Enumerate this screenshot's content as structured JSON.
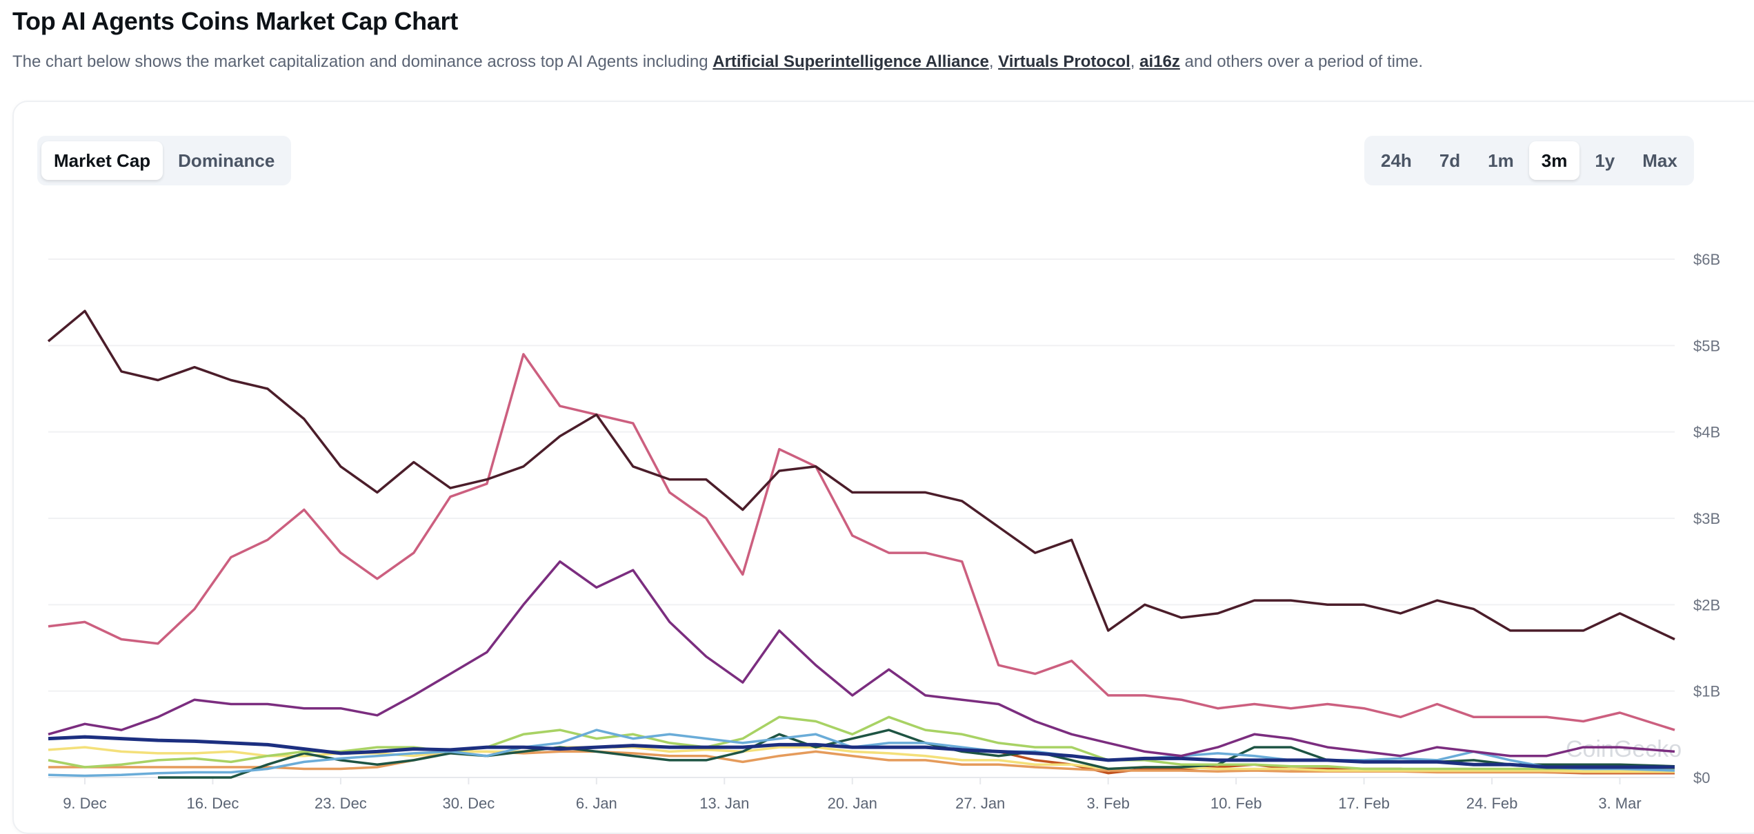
{
  "header": {
    "title": "Top AI Agents Coins Market Cap Chart",
    "subtitle_before": "The chart below shows the market capitalization and dominance across top AI Agents including ",
    "links": [
      "Artificial Superintelligence Alliance",
      "Virtuals Protocol",
      "ai16z"
    ],
    "subtitle_after": " and others over a period of time."
  },
  "view_toggle": {
    "options": [
      "Market Cap",
      "Dominance"
    ],
    "selected": "Market Cap"
  },
  "range_toggle": {
    "options": [
      "24h",
      "7d",
      "1m",
      "3m",
      "1y",
      "Max"
    ],
    "selected": "3m"
  },
  "watermark": "CoinGecko",
  "chart_data": {
    "type": "line",
    "title": "",
    "xlabel": "",
    "ylabel": "",
    "y_unit": "USD billions",
    "ylim": [
      0,
      6
    ],
    "y_ticks": [
      "$0",
      "$1B",
      "$2B",
      "$3B",
      "$4B",
      "$5B",
      "$6B"
    ],
    "x_ticks": [
      {
        "date": "2024-12-09",
        "label": "9. Dec"
      },
      {
        "date": "2024-12-16",
        "label": "16. Dec"
      },
      {
        "date": "2024-12-23",
        "label": "23. Dec"
      },
      {
        "date": "2024-12-30",
        "label": "30. Dec"
      },
      {
        "date": "2025-01-06",
        "label": "6. Jan"
      },
      {
        "date": "2025-01-13",
        "label": "13. Jan"
      },
      {
        "date": "2025-01-20",
        "label": "20. Jan"
      },
      {
        "date": "2025-01-27",
        "label": "27. Jan"
      },
      {
        "date": "2025-02-03",
        "label": "3. Feb"
      },
      {
        "date": "2025-02-10",
        "label": "10. Feb"
      },
      {
        "date": "2025-02-17",
        "label": "17. Feb"
      },
      {
        "date": "2025-02-24",
        "label": "24. Feb"
      },
      {
        "date": "2025-03-03",
        "label": "3. Mar"
      }
    ],
    "xlim": [
      "2024-12-07",
      "2025-03-06"
    ],
    "grid": "horizontal",
    "legend": "none",
    "x": [
      "2024-12-07",
      "2024-12-09",
      "2024-12-11",
      "2024-12-13",
      "2024-12-15",
      "2024-12-17",
      "2024-12-19",
      "2024-12-21",
      "2024-12-23",
      "2024-12-25",
      "2024-12-27",
      "2024-12-29",
      "2024-12-31",
      "2025-01-02",
      "2025-01-04",
      "2025-01-06",
      "2025-01-08",
      "2025-01-10",
      "2025-01-12",
      "2025-01-14",
      "2025-01-16",
      "2025-01-18",
      "2025-01-20",
      "2025-01-22",
      "2025-01-24",
      "2025-01-26",
      "2025-01-28",
      "2025-01-30",
      "2025-02-01",
      "2025-02-03",
      "2025-02-05",
      "2025-02-07",
      "2025-02-09",
      "2025-02-11",
      "2025-02-13",
      "2025-02-15",
      "2025-02-17",
      "2025-02-19",
      "2025-02-21",
      "2025-02-23",
      "2025-02-25",
      "2025-02-27",
      "2025-03-01",
      "2025-03-03",
      "2025-03-06"
    ],
    "series": [
      {
        "color": "#4b1d2a",
        "values": [
          5.05,
          5.4,
          4.7,
          4.6,
          4.75,
          4.6,
          4.5,
          4.15,
          3.6,
          3.3,
          3.65,
          3.35,
          3.45,
          3.6,
          3.95,
          4.2,
          3.6,
          3.45,
          3.45,
          3.1,
          3.55,
          3.6,
          3.3,
          3.3,
          3.3,
          3.2,
          2.9,
          2.6,
          2.75,
          1.7,
          2.0,
          1.85,
          1.9,
          2.05,
          2.05,
          2.0,
          2.0,
          1.9,
          2.05,
          1.95,
          1.7,
          1.7,
          1.7,
          1.9,
          1.6
        ]
      },
      {
        "color": "#cc5f7f",
        "values": [
          1.75,
          1.8,
          1.6,
          1.55,
          1.95,
          2.55,
          2.75,
          3.1,
          2.6,
          2.3,
          2.6,
          3.25,
          3.4,
          4.9,
          4.3,
          4.2,
          4.1,
          3.3,
          3.0,
          2.35,
          3.8,
          3.6,
          2.8,
          2.6,
          2.6,
          2.5,
          1.3,
          1.2,
          1.35,
          0.95,
          0.95,
          0.9,
          0.8,
          0.85,
          0.8,
          0.85,
          0.8,
          0.7,
          0.85,
          0.7,
          0.7,
          0.7,
          0.65,
          0.75,
          0.55
        ]
      },
      {
        "color": "#7b2d7f",
        "values": [
          0.5,
          0.62,
          0.55,
          0.7,
          0.9,
          0.85,
          0.85,
          0.8,
          0.8,
          0.72,
          0.95,
          1.2,
          1.45,
          2.0,
          2.5,
          2.2,
          2.4,
          1.8,
          1.4,
          1.1,
          1.7,
          1.3,
          0.95,
          1.25,
          0.95,
          0.9,
          0.85,
          0.65,
          0.5,
          0.4,
          0.3,
          0.25,
          0.35,
          0.5,
          0.45,
          0.35,
          0.3,
          0.25,
          0.35,
          0.3,
          0.25,
          0.25,
          0.35,
          0.35,
          0.3
        ]
      },
      {
        "color": "#1c2f80",
        "values": [
          0.45,
          0.47,
          0.45,
          0.43,
          0.42,
          0.4,
          0.38,
          0.33,
          0.28,
          0.3,
          0.33,
          0.32,
          0.35,
          0.35,
          0.33,
          0.35,
          0.37,
          0.35,
          0.35,
          0.35,
          0.38,
          0.38,
          0.35,
          0.35,
          0.35,
          0.32,
          0.3,
          0.28,
          0.25,
          0.2,
          0.22,
          0.22,
          0.2,
          0.2,
          0.2,
          0.2,
          0.18,
          0.18,
          0.18,
          0.15,
          0.15,
          0.12,
          0.12,
          0.12,
          0.12
        ]
      },
      {
        "color": "#6aacd8",
        "values": [
          0.03,
          0.02,
          0.03,
          0.05,
          0.06,
          0.06,
          0.1,
          0.18,
          0.22,
          0.25,
          0.28,
          0.3,
          0.25,
          0.35,
          0.4,
          0.55,
          0.45,
          0.5,
          0.45,
          0.4,
          0.45,
          0.5,
          0.35,
          0.4,
          0.4,
          0.35,
          0.3,
          0.3,
          0.25,
          0.2,
          0.22,
          0.25,
          0.28,
          0.25,
          0.2,
          0.2,
          0.2,
          0.22,
          0.2,
          0.3,
          0.2,
          0.12,
          0.1,
          0.1,
          0.08
        ]
      },
      {
        "color": "#a8d264",
        "values": [
          0.2,
          0.12,
          0.15,
          0.2,
          0.22,
          0.18,
          0.25,
          0.3,
          0.3,
          0.35,
          0.35,
          0.3,
          0.35,
          0.5,
          0.55,
          0.45,
          0.5,
          0.4,
          0.35,
          0.45,
          0.7,
          0.65,
          0.5,
          0.7,
          0.55,
          0.5,
          0.4,
          0.35,
          0.35,
          0.2,
          0.2,
          0.15,
          0.15,
          0.15,
          0.13,
          0.13,
          0.1,
          0.1,
          0.1,
          0.1,
          0.1,
          0.1,
          0.1,
          0.1,
          0.1
        ]
      },
      {
        "color": "#1e5443",
        "values": [
          null,
          null,
          null,
          0,
          0,
          0,
          0.15,
          0.28,
          0.2,
          0.15,
          0.2,
          0.28,
          0.25,
          0.3,
          0.35,
          0.3,
          0.25,
          0.2,
          0.2,
          0.3,
          0.5,
          0.35,
          0.45,
          0.55,
          0.4,
          0.3,
          0.25,
          0.3,
          0.2,
          0.1,
          0.12,
          0.12,
          0.15,
          0.35,
          0.35,
          0.2,
          0.18,
          0.18,
          0.18,
          0.2,
          0.15,
          0.15,
          0.15,
          0.15,
          0.13
        ]
      },
      {
        "color": "#f4e07a",
        "values": [
          0.32,
          0.35,
          0.3,
          0.28,
          0.28,
          0.3,
          0.25,
          0.25,
          0.28,
          0.28,
          0.25,
          0.3,
          0.3,
          0.3,
          0.35,
          0.35,
          0.35,
          0.3,
          0.32,
          0.3,
          0.35,
          0.35,
          0.3,
          0.28,
          0.25,
          0.2,
          0.2,
          0.15,
          0.15,
          0.1,
          0.12,
          0.12,
          0.1,
          0.1,
          0.1,
          0.08,
          0.08,
          0.08,
          0.08,
          0.08,
          0.08,
          0.08,
          0.07,
          0.07,
          0.07
        ]
      },
      {
        "color": "#e59b5b",
        "values": [
          0.12,
          0.12,
          0.12,
          0.12,
          0.12,
          0.12,
          0.12,
          0.1,
          0.1,
          0.12,
          0.2,
          0.3,
          0.3,
          0.28,
          0.3,
          0.3,
          0.28,
          0.25,
          0.25,
          0.18,
          0.25,
          0.3,
          0.25,
          0.2,
          0.2,
          0.15,
          0.15,
          0.12,
          0.1,
          0.08,
          0.08,
          0.08,
          0.07,
          0.08,
          0.07,
          0.07,
          0.07,
          0.07,
          0.06,
          0.06,
          0.06,
          0.06,
          0.06,
          0.06,
          0.06
        ]
      },
      {
        "color": "#c0521f",
        "values": [
          null,
          null,
          null,
          null,
          null,
          null,
          null,
          null,
          null,
          null,
          null,
          null,
          null,
          null,
          null,
          null,
          null,
          null,
          null,
          null,
          null,
          null,
          null,
          null,
          null,
          null,
          0.3,
          0.2,
          0.15,
          0.05,
          0.1,
          0.1,
          0.12,
          0.15,
          0.1,
          0.1,
          0.1,
          0.1,
          0.08,
          0.08,
          0.07,
          0.06,
          0.05,
          0.05,
          0.05
        ]
      }
    ]
  }
}
